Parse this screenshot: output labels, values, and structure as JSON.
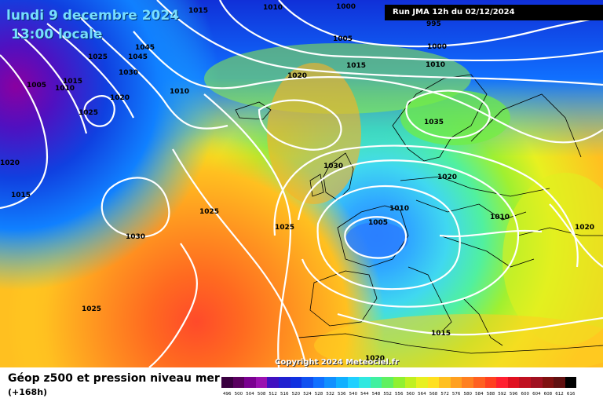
{
  "map": {
    "title_line1": "lundi 9 decembre 2024",
    "title_line2": "13:00 locale",
    "run_info": "Run JMA 12h du 02/12/2024",
    "copyright": "Copyright 2024 Meteociel.fr"
  },
  "pressure_labels": [
    "1015",
    "1010",
    "1000",
    "995",
    "1005",
    "1000",
    "1015",
    "1010",
    "1025",
    "1045",
    "1045",
    "1030",
    "1020",
    "1010",
    "1005",
    "1015",
    "1010",
    "1025",
    "1020",
    "1035",
    "1030",
    "1020",
    "1015",
    "1020",
    "1025",
    "1010",
    "1005",
    "1010",
    "1020",
    "1025",
    "1030",
    "1025",
    "1015",
    "1020"
  ],
  "legend": {
    "title": "Géop z500 et pression niveau mer",
    "subtitle": "(+168h)",
    "scale_values": [
      "496",
      "500",
      "504",
      "508",
      "512",
      "516",
      "520",
      "524",
      "528",
      "532",
      "536",
      "540",
      "544",
      "548",
      "552",
      "556",
      "560",
      "564",
      "568",
      "572",
      "576",
      "580",
      "584",
      "588",
      "592",
      "596",
      "600",
      "604",
      "608",
      "612",
      "616"
    ],
    "scale_colors": [
      "#3a0040",
      "#5a0060",
      "#7a0090",
      "#9a10b0",
      "#4010c0",
      "#2020d0",
      "#1030e0",
      "#1050f0",
      "#1070ff",
      "#1090ff",
      "#10b0ff",
      "#20d0ff",
      "#30e8e0",
      "#40f0a0",
      "#60f060",
      "#90f030",
      "#c0f020",
      "#e8f020",
      "#ffe020",
      "#ffc020",
      "#ffa020",
      "#ff8020",
      "#ff6020",
      "#ff4020",
      "#ff2030",
      "#e01020",
      "#c01020",
      "#a01020",
      "#801010",
      "#601010",
      "#000000"
    ]
  },
  "colors": {
    "title_text": "#77ddff",
    "isobar": "#ffffff"
  }
}
